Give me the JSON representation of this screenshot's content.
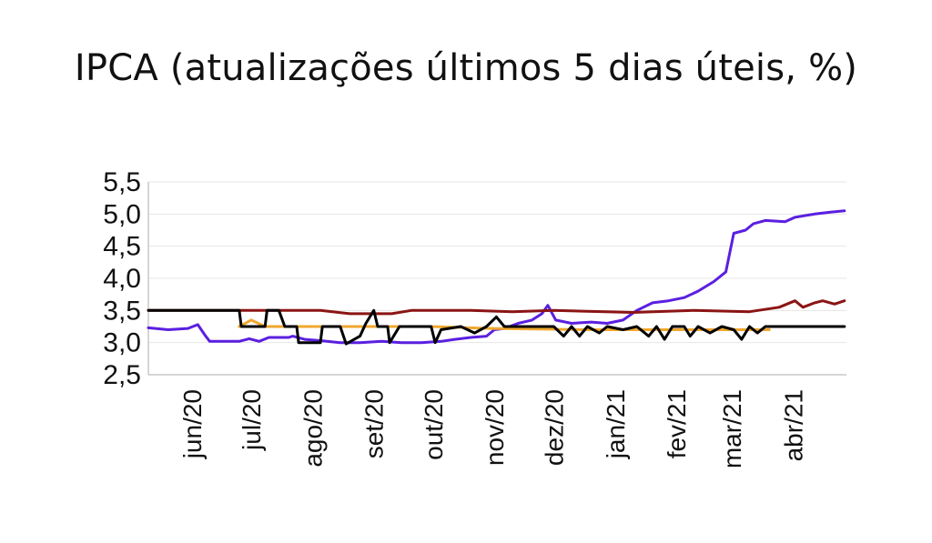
{
  "chart_data": {
    "type": "line",
    "title": "IPCA (atualizações últimos 5 dias úteis, %)",
    "xlabel": "",
    "ylabel": "",
    "ylim": [
      2.5,
      5.5
    ],
    "yticks": [
      "5,5",
      "5,0",
      "4,5",
      "4,0",
      "3,5",
      "3,0",
      "2,5"
    ],
    "ytick_values": [
      5.5,
      5.0,
      4.5,
      4.0,
      3.5,
      3.0,
      2.5
    ],
    "xlim": [
      "2020-05-10",
      "2021-04-28"
    ],
    "xticks": [
      {
        "date": "2020-06-01",
        "label": "jun/20"
      },
      {
        "date": "2020-07-01",
        "label": "jul/20"
      },
      {
        "date": "2020-08-01",
        "label": "ago/20"
      },
      {
        "date": "2020-09-01",
        "label": "set/20"
      },
      {
        "date": "2020-10-01",
        "label": "out/20"
      },
      {
        "date": "2020-11-01",
        "label": "nov/20"
      },
      {
        "date": "2020-12-01",
        "label": "dez/20"
      },
      {
        "date": "2021-01-01",
        "label": "jan/21"
      },
      {
        "date": "2021-02-01",
        "label": "fev/21"
      },
      {
        "date": "2021-03-01",
        "label": "mar/21"
      },
      {
        "date": "2021-04-01",
        "label": "abr/21"
      }
    ],
    "grid": true,
    "legend": "none",
    "series": [
      {
        "color": "#5b1fe0",
        "points": [
          [
            "2020-05-10",
            3.23
          ],
          [
            "2020-05-20",
            3.2
          ],
          [
            "2020-05-30",
            3.22
          ],
          [
            "2020-06-04",
            3.28
          ],
          [
            "2020-06-08",
            3.1
          ],
          [
            "2020-06-10",
            3.02
          ],
          [
            "2020-06-25",
            3.02
          ],
          [
            "2020-06-30",
            3.06
          ],
          [
            "2020-07-05",
            3.02
          ],
          [
            "2020-07-10",
            3.08
          ],
          [
            "2020-07-20",
            3.08
          ],
          [
            "2020-07-22",
            3.1
          ],
          [
            "2020-07-28",
            3.05
          ],
          [
            "2020-08-05",
            3.03
          ],
          [
            "2020-08-15",
            3.0
          ],
          [
            "2020-08-25",
            3.0
          ],
          [
            "2020-09-05",
            3.02
          ],
          [
            "2020-09-15",
            3.0
          ],
          [
            "2020-09-25",
            3.0
          ],
          [
            "2020-10-05",
            3.02
          ],
          [
            "2020-10-12",
            3.05
          ],
          [
            "2020-10-20",
            3.08
          ],
          [
            "2020-10-28",
            3.1
          ],
          [
            "2020-11-01",
            3.2
          ],
          [
            "2020-11-06",
            3.22
          ],
          [
            "2020-11-13",
            3.3
          ],
          [
            "2020-11-20",
            3.35
          ],
          [
            "2020-11-25",
            3.45
          ],
          [
            "2020-11-28",
            3.58
          ],
          [
            "2020-12-02",
            3.35
          ],
          [
            "2020-12-10",
            3.3
          ],
          [
            "2020-12-20",
            3.32
          ],
          [
            "2020-12-28",
            3.3
          ],
          [
            "2021-01-05",
            3.35
          ],
          [
            "2021-01-12",
            3.5
          ],
          [
            "2021-01-20",
            3.62
          ],
          [
            "2021-01-28",
            3.65
          ],
          [
            "2021-02-05",
            3.7
          ],
          [
            "2021-02-12",
            3.8
          ],
          [
            "2021-02-20",
            3.95
          ],
          [
            "2021-02-26",
            4.1
          ],
          [
            "2021-03-02",
            4.7
          ],
          [
            "2021-03-08",
            4.75
          ],
          [
            "2021-03-12",
            4.85
          ],
          [
            "2021-03-18",
            4.9
          ],
          [
            "2021-03-28",
            4.88
          ],
          [
            "2021-04-02",
            4.95
          ],
          [
            "2021-04-12",
            5.0
          ],
          [
            "2021-04-20",
            5.03
          ],
          [
            "2021-04-27",
            5.05
          ]
        ]
      },
      {
        "color": "#8b1414",
        "points": [
          [
            "2020-05-10",
            3.5
          ],
          [
            "2020-07-10",
            3.5
          ],
          [
            "2020-08-05",
            3.5
          ],
          [
            "2020-08-20",
            3.45
          ],
          [
            "2020-09-10",
            3.45
          ],
          [
            "2020-09-20",
            3.5
          ],
          [
            "2020-10-20",
            3.5
          ],
          [
            "2020-11-10",
            3.48
          ],
          [
            "2020-12-01",
            3.5
          ],
          [
            "2021-01-10",
            3.47
          ],
          [
            "2021-02-10",
            3.5
          ],
          [
            "2021-03-10",
            3.48
          ],
          [
            "2021-03-25",
            3.55
          ],
          [
            "2021-04-02",
            3.65
          ],
          [
            "2021-04-06",
            3.55
          ],
          [
            "2021-04-12",
            3.62
          ],
          [
            "2021-04-16",
            3.65
          ],
          [
            "2021-04-22",
            3.6
          ],
          [
            "2021-04-27",
            3.65
          ]
        ]
      },
      {
        "color": "#f0a830",
        "points": [
          [
            "2020-06-25",
            3.25
          ],
          [
            "2020-07-01",
            3.35
          ],
          [
            "2020-07-08",
            3.25
          ],
          [
            "2020-07-20",
            3.25
          ],
          [
            "2020-08-20",
            3.25
          ],
          [
            "2020-09-30",
            3.25
          ],
          [
            "2020-10-30",
            3.22
          ],
          [
            "2020-12-20",
            3.2
          ],
          [
            "2021-03-20",
            3.2
          ]
        ]
      },
      {
        "color": "#000000",
        "points": [
          [
            "2020-05-10",
            3.5
          ],
          [
            "2020-06-25",
            3.5
          ],
          [
            "2020-06-26",
            3.25
          ],
          [
            "2020-07-08",
            3.25
          ],
          [
            "2020-07-09",
            3.5
          ],
          [
            "2020-07-15",
            3.5
          ],
          [
            "2020-07-18",
            3.25
          ],
          [
            "2020-07-24",
            3.25
          ],
          [
            "2020-07-25",
            3.0
          ],
          [
            "2020-08-05",
            3.0
          ],
          [
            "2020-08-06",
            3.25
          ],
          [
            "2020-08-15",
            3.25
          ],
          [
            "2020-08-18",
            2.98
          ],
          [
            "2020-08-25",
            3.1
          ],
          [
            "2020-08-28",
            3.3
          ],
          [
            "2020-09-01",
            3.5
          ],
          [
            "2020-09-03",
            3.25
          ],
          [
            "2020-09-08",
            3.25
          ],
          [
            "2020-09-09",
            3.0
          ],
          [
            "2020-09-14",
            3.25
          ],
          [
            "2020-09-30",
            3.25
          ],
          [
            "2020-10-02",
            3.0
          ],
          [
            "2020-10-05",
            3.2
          ],
          [
            "2020-10-15",
            3.25
          ],
          [
            "2020-10-22",
            3.15
          ],
          [
            "2020-10-28",
            3.25
          ],
          [
            "2020-11-02",
            3.4
          ],
          [
            "2020-11-06",
            3.25
          ],
          [
            "2020-12-01",
            3.25
          ],
          [
            "2020-12-06",
            3.1
          ],
          [
            "2020-12-10",
            3.25
          ],
          [
            "2020-12-14",
            3.1
          ],
          [
            "2020-12-18",
            3.25
          ],
          [
            "2020-12-24",
            3.15
          ],
          [
            "2020-12-28",
            3.25
          ],
          [
            "2021-01-05",
            3.2
          ],
          [
            "2021-01-12",
            3.25
          ],
          [
            "2021-01-18",
            3.1
          ],
          [
            "2021-01-22",
            3.25
          ],
          [
            "2021-01-26",
            3.05
          ],
          [
            "2021-01-30",
            3.25
          ],
          [
            "2021-02-05",
            3.25
          ],
          [
            "2021-02-08",
            3.1
          ],
          [
            "2021-02-12",
            3.25
          ],
          [
            "2021-02-18",
            3.15
          ],
          [
            "2021-02-24",
            3.25
          ],
          [
            "2021-03-02",
            3.2
          ],
          [
            "2021-03-06",
            3.05
          ],
          [
            "2021-03-10",
            3.25
          ],
          [
            "2021-03-14",
            3.15
          ],
          [
            "2021-03-18",
            3.25
          ],
          [
            "2021-04-27",
            3.25
          ]
        ]
      }
    ]
  }
}
